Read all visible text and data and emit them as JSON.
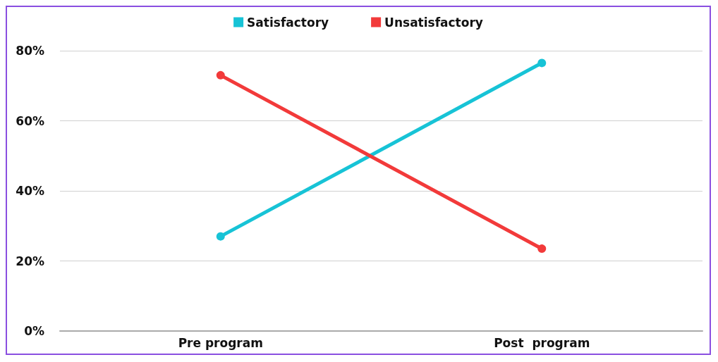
{
  "chart_data": {
    "type": "line",
    "categories": [
      "Pre program",
      "Post  program"
    ],
    "series": [
      {
        "name": "Satisfactory",
        "color": "#17c3d6",
        "values": [
          27,
          76.5
        ]
      },
      {
        "name": "Unsatisfactory",
        "color": "#f23a3a",
        "values": [
          73,
          23.5
        ]
      }
    ],
    "ylim": [
      0,
      80
    ],
    "yticks": [
      {
        "value": 0,
        "label": "0%"
      },
      {
        "value": 20,
        "label": "20%"
      },
      {
        "value": 40,
        "label": "40%"
      },
      {
        "value": 60,
        "label": "60%"
      },
      {
        "value": 80,
        "label": "80%"
      }
    ],
    "grid": "y",
    "legend": "top",
    "marker": "circle",
    "line_style": "solid"
  }
}
